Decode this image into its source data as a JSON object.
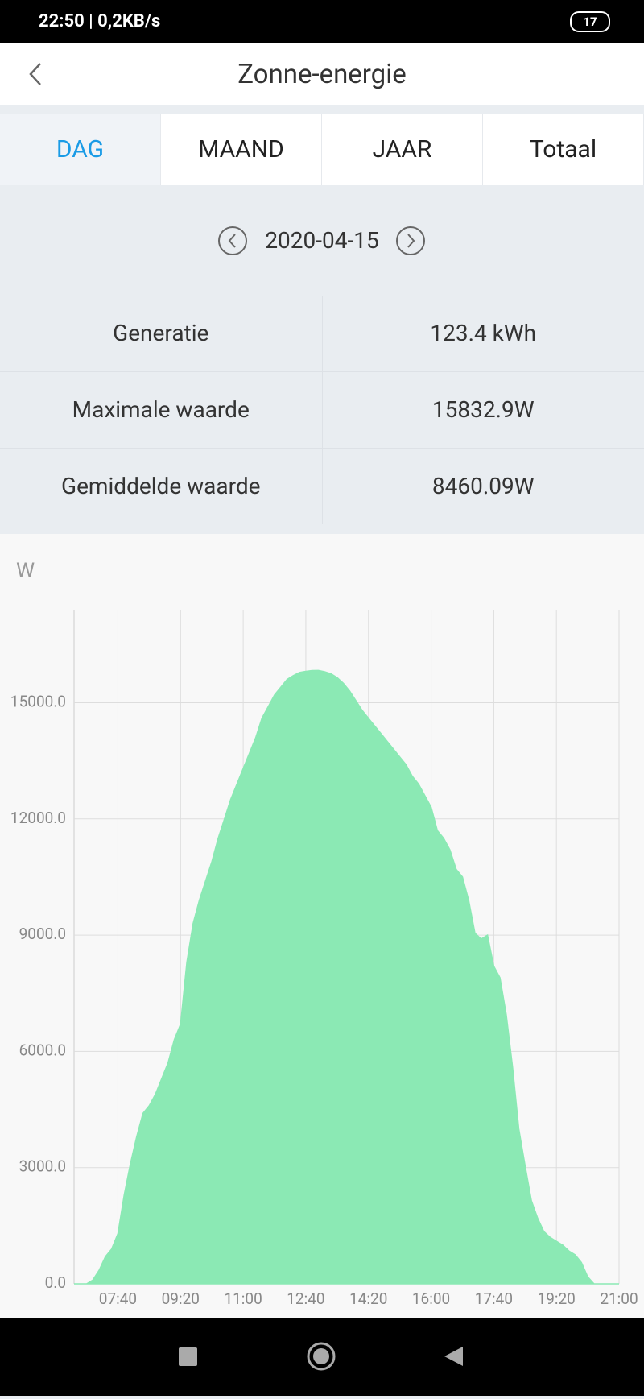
{
  "status_bar": {
    "time": "22:50 | 0,2KB/s",
    "battery": "17"
  },
  "header": {
    "title": "Zonne-energie"
  },
  "tabs": [
    "DAG",
    "MAAND",
    "JAAR",
    "Totaal"
  ],
  "date": "2020-04-15",
  "stats": [
    [
      "Generatie",
      "123.4 kWh"
    ],
    [
      "Maximale waarde",
      "15832.9W"
    ],
    [
      "Gemiddelde waarde",
      "8460.09W"
    ]
  ],
  "chart_data": {
    "type": "area",
    "y_label": "W",
    "color": "#8be9b4",
    "x": [
      "06:30",
      "06:40",
      "06:50",
      "07:00",
      "07:10",
      "07:20",
      "07:30",
      "07:40",
      "07:50",
      "08:00",
      "08:10",
      "08:20",
      "08:30",
      "08:40",
      "08:50",
      "09:00",
      "09:10",
      "09:20",
      "09:30",
      "09:40",
      "09:50",
      "10:00",
      "10:10",
      "10:20",
      "10:30",
      "10:40",
      "10:50",
      "11:00",
      "11:10",
      "11:20",
      "11:30",
      "11:40",
      "11:50",
      "12:00",
      "12:10",
      "12:20",
      "12:30",
      "12:40",
      "12:50",
      "13:00",
      "13:10",
      "13:20",
      "13:30",
      "13:40",
      "13:50",
      "14:00",
      "14:10",
      "14:20",
      "14:30",
      "14:40",
      "14:50",
      "15:00",
      "15:10",
      "15:20",
      "15:30",
      "15:40",
      "15:50",
      "16:00",
      "16:10",
      "16:20",
      "16:30",
      "16:40",
      "16:50",
      "17:00",
      "17:10",
      "17:20",
      "17:30",
      "17:40",
      "17:50",
      "18:00",
      "18:10",
      "18:20",
      "18:30",
      "18:40",
      "18:50",
      "19:00",
      "19:10",
      "19:20",
      "19:30",
      "19:40",
      "19:50",
      "20:00",
      "20:10",
      "20:20",
      "20:30",
      "20:40",
      "20:50",
      "21:00"
    ],
    "values": [
      0,
      0,
      0,
      100,
      350,
      700,
      900,
      1300,
      2300,
      3100,
      3800,
      4400,
      4600,
      4900,
      5300,
      5700,
      6300,
      6700,
      8300,
      9300,
      9900,
      10400,
      10900,
      11500,
      12000,
      12500,
      12900,
      13300,
      13700,
      14100,
      14600,
      14900,
      15200,
      15400,
      15600,
      15700,
      15780,
      15810,
      15830,
      15833,
      15800,
      15750,
      15650,
      15500,
      15300,
      15050,
      14800,
      14600,
      14400,
      14200,
      14000,
      13800,
      13600,
      13400,
      13100,
      12900,
      12600,
      12300,
      11700,
      11500,
      11200,
      10700,
      10500,
      9900,
      9050,
      8900,
      9000,
      8200,
      7900,
      6950,
      5600,
      4000,
      3050,
      2150,
      1700,
      1350,
      1200,
      1100,
      1000,
      850,
      750,
      550,
      180,
      0,
      0,
      0,
      0,
      0
    ],
    "xlim": [
      "06:30",
      "21:00"
    ],
    "xticks": [
      "07:40",
      "09:20",
      "11:00",
      "12:40",
      "14:20",
      "16:00",
      "17:40",
      "19:20",
      "21:00"
    ],
    "ylim": [
      0,
      17400
    ],
    "yticks": [
      {
        "value": 0,
        "label": "0.0"
      },
      {
        "value": 3000,
        "label": "3000.0"
      },
      {
        "value": 6000,
        "label": "6000.0"
      },
      {
        "value": 9000,
        "label": "9000.0"
      },
      {
        "value": 12000,
        "label": "12000.0"
      },
      {
        "value": 15000,
        "label": "15000.0"
      }
    ],
    "grid": true
  }
}
